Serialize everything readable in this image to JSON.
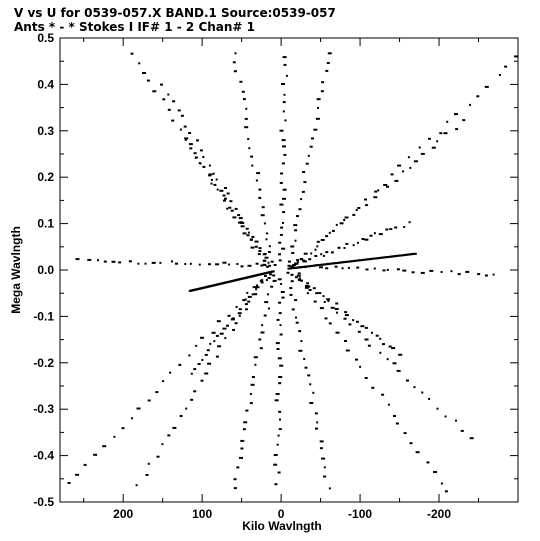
{
  "chart_data": {
    "type": "scatter",
    "title": "V vs U for 0539-057.X BAND.1   Source:0539-057",
    "subtitle": "Ants * - *    Stokes I  IF# 1 - 2  Chan# 1",
    "xlabel": "Kilo Wavlngth",
    "ylabel": "Mega Wavlngth",
    "xlim": [
      280,
      -300
    ],
    "ylim": [
      -0.5,
      0.5
    ],
    "x_ticks": [
      200,
      100,
      0,
      -100,
      -200
    ],
    "x_tick_labels": [
      "200",
      "100",
      "0",
      "-100",
      "-200"
    ],
    "y_ticks": [
      0.5,
      0.4,
      0.3,
      0.2,
      0.1,
      0.0,
      -0.1,
      -0.2,
      -0.3,
      -0.4,
      -0.5
    ],
    "y_tick_labels": [
      "0.5",
      "0.4",
      "0.3",
      "0.2",
      "0.1",
      "0.0",
      "-0.1",
      "-0.2",
      "-0.3",
      "-0.4",
      "-0.5"
    ],
    "grid": false,
    "marker_color": "#000000",
    "arms": [
      {
        "u_start": 20,
        "v_start": 0.01,
        "u_end": 255,
        "v_end": 0.02
      },
      {
        "u_start": 20,
        "v_start": 0.01,
        "u_end": 190,
        "v_end": 0.47
      },
      {
        "u_start": 15,
        "v_start": 0.01,
        "u_end": 150,
        "v_end": 0.4
      },
      {
        "u_start": 15,
        "v_start": 0.01,
        "u_end": 120,
        "v_end": 0.28
      },
      {
        "u_start": 20,
        "v_start": -0.01,
        "u_end": 270,
        "v_end": -0.46
      },
      {
        "u_start": 20,
        "v_start": -0.01,
        "u_end": 180,
        "v_end": -0.46
      },
      {
        "u_start": 15,
        "v_start": -0.01,
        "u_end": 115,
        "v_end": -0.22
      },
      {
        "u_start": 10,
        "v_start": 0.01,
        "u_end": 60,
        "v_end": 0.47
      },
      {
        "u_start": 10,
        "v_start": -0.01,
        "u_end": 60,
        "v_end": -0.47
      },
      {
        "u_start": -20,
        "v_start": 0.01,
        "u_end": -270,
        "v_end": -0.01
      },
      {
        "u_start": -20,
        "v_start": 0.01,
        "u_end": -300,
        "v_end": 0.46
      },
      {
        "u_start": -15,
        "v_start": 0.01,
        "u_end": -230,
        "v_end": 0.32
      },
      {
        "u_start": -15,
        "v_start": 0.01,
        "u_end": -160,
        "v_end": 0.1
      },
      {
        "u_start": -20,
        "v_start": -0.01,
        "u_end": -210,
        "v_end": -0.48
      },
      {
        "u_start": -20,
        "v_start": -0.01,
        "u_end": -240,
        "v_end": -0.36
      },
      {
        "u_start": -15,
        "v_start": -0.01,
        "u_end": -150,
        "v_end": -0.18
      },
      {
        "u_start": -10,
        "v_start": 0.01,
        "u_end": -60,
        "v_end": 0.47
      },
      {
        "u_start": -10,
        "v_start": -0.01,
        "u_end": -60,
        "v_end": -0.47
      },
      {
        "u_start": 0,
        "v_start": 0.02,
        "u_end": -5,
        "v_end": 0.46
      },
      {
        "u_start": 0,
        "v_start": -0.02,
        "u_end": 5,
        "v_end": -0.46
      }
    ],
    "central_tracks": [
      {
        "u_start": 115,
        "v_start": -0.045,
        "u_end": 10,
        "v_end": -0.003
      },
      {
        "u_start": -10,
        "v_start": 0.003,
        "u_end": -170,
        "v_end": 0.035
      }
    ]
  }
}
